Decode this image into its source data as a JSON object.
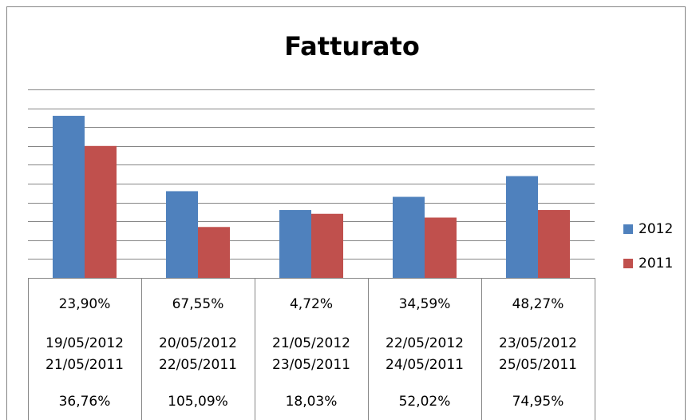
{
  "chart_data": {
    "type": "bar",
    "title": "Fatturato",
    "categories": [
      [
        "19/05/2012",
        "21/05/2011"
      ],
      [
        "20/05/2012",
        "22/05/2011"
      ],
      [
        "21/05/2012",
        "23/05/2011"
      ],
      [
        "22/05/2012",
        "24/05/2011"
      ],
      [
        "23/05/2012",
        "25/05/2011"
      ]
    ],
    "series": [
      {
        "name": "2012",
        "color": "#4f81bd",
        "values": [
          8.6,
          4.6,
          3.6,
          4.3,
          5.4
        ],
        "table_labels": [
          "23,90%",
          "67,55%",
          "4,72%",
          "34,59%",
          "48,27%"
        ]
      },
      {
        "name": "2011",
        "color": "#c0504d",
        "values": [
          7.0,
          2.7,
          3.4,
          3.2,
          3.6
        ],
        "table_labels": [
          "36,76%",
          "105,09%",
          "18,03%",
          "52,02%",
          "74,95%"
        ]
      }
    ],
    "ylim": [
      0,
      10
    ],
    "yticks": [
      0,
      1,
      2,
      3,
      4,
      5,
      6,
      7,
      8,
      9,
      10
    ],
    "grid": true,
    "legend": "right"
  }
}
